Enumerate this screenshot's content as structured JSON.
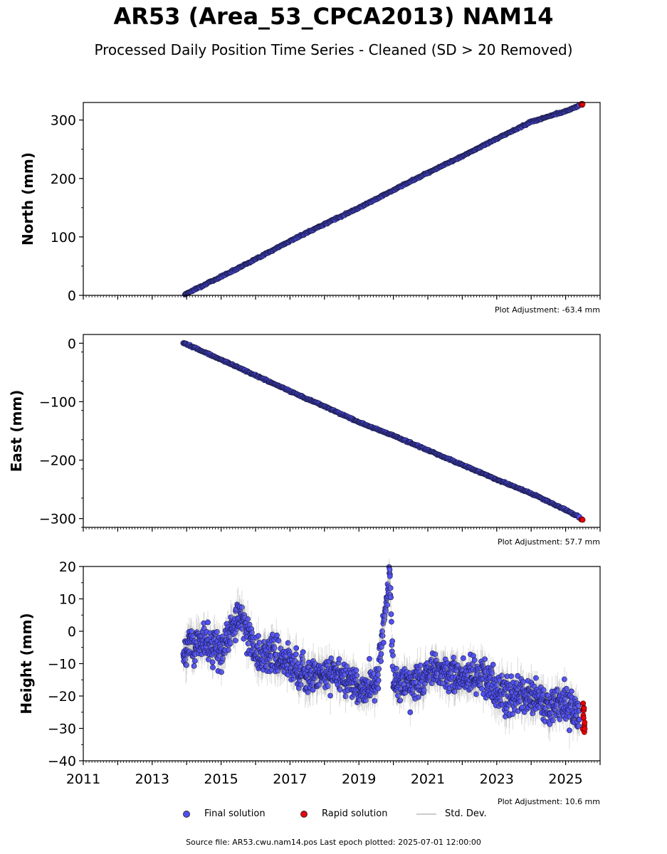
{
  "title": "AR53 (Area_53_CPCA2013) NAM14",
  "subtitle": "Processed Daily Position Time Series - Cleaned (SD > 20 Removed)",
  "legend": {
    "final": "Final solution",
    "rapid": "Rapid solution",
    "std": "Std. Dev."
  },
  "source": "Source file: AR53.cwu.nam14.pos  Last epoch plotted: 2025-07-01 12:00:00",
  "colors": {
    "final": "#4f4ff5",
    "rapid": "#e8000b",
    "std": "#9a9a9a"
  },
  "chart_data": [
    {
      "type": "scatter",
      "ylabel": "North (mm)",
      "adjustment": "Plot Adjustment: -63.4 mm",
      "xlim": [
        2011,
        2026
      ],
      "ylim": [
        0,
        330
      ],
      "yticks": [
        0,
        100,
        200,
        300
      ],
      "yticks_labels": [
        "0",
        "100",
        "200",
        "300"
      ],
      "series": [
        {
          "name": "Final solution",
          "x": [
            2013.95,
            2015,
            2016,
            2017,
            2018,
            2019,
            2020,
            2021,
            2022,
            2023,
            2024,
            2025,
            2025.4
          ],
          "values": [
            2,
            32,
            62,
            93,
            122,
            150,
            180,
            210,
            238,
            268,
            297,
            315,
            325
          ]
        },
        {
          "name": "Rapid solution",
          "x": [
            2025.45,
            2025.5
          ],
          "values": [
            326,
            328
          ]
        }
      ]
    },
    {
      "type": "scatter",
      "ylabel": "East (mm)",
      "adjustment": "Plot Adjustment: 57.7 mm",
      "xlim": [
        2011,
        2026
      ],
      "ylim": [
        -315,
        15
      ],
      "yticks": [
        0,
        -100,
        -200,
        -300
      ],
      "yticks_labels": [
        "0",
        "−100",
        "−200",
        "−300"
      ],
      "series": [
        {
          "name": "Final solution",
          "x": [
            2013.9,
            2015,
            2016,
            2017,
            2018,
            2019,
            2020,
            2021,
            2022,
            2023,
            2024,
            2025,
            2025.4
          ],
          "values": [
            1,
            -28,
            -55,
            -82,
            -108,
            -135,
            -158,
            -183,
            -208,
            -233,
            -257,
            -285,
            -298
          ]
        },
        {
          "name": "Rapid solution",
          "x": [
            2025.45,
            2025.5
          ],
          "values": [
            -301,
            -302
          ]
        }
      ]
    },
    {
      "type": "scatter",
      "ylabel": "Height (mm)",
      "adjustment": "Plot Adjustment: 10.6 mm",
      "xlim": [
        2011,
        2026
      ],
      "ylim": [
        -40,
        20
      ],
      "yticks": [
        20,
        10,
        0,
        -10,
        -20,
        -30,
        -40
      ],
      "yticks_labels": [
        "20",
        "10",
        "0",
        "−10",
        "−20",
        "−30",
        "−40"
      ],
      "xticks": [
        2011,
        2013,
        2015,
        2017,
        2019,
        2021,
        2023,
        2025
      ],
      "series": [
        {
          "name": "Final solution",
          "x": [
            2013.9,
            2014.5,
            2015.0,
            2015.6,
            2016.0,
            2016.5,
            2017.0,
            2017.5,
            2018.0,
            2018.5,
            2019.0,
            2019.5,
            2019.9,
            2020.0,
            2020.5,
            2021.0,
            2021.5,
            2022.0,
            2022.5,
            2023.0,
            2023.5,
            2024.0,
            2024.5,
            2025.0,
            2025.4
          ],
          "values": [
            -5,
            -3,
            -6,
            5,
            -8,
            -7,
            -10,
            -14,
            -13,
            -14,
            -17,
            -16,
            17,
            -15,
            -16,
            -13,
            -12,
            -15,
            -13,
            -18,
            -20,
            -19,
            -24,
            -22,
            -26
          ]
        },
        {
          "name": "Rapid solution",
          "x": [
            2025.5
          ],
          "values": [
            -27
          ]
        }
      ]
    }
  ]
}
